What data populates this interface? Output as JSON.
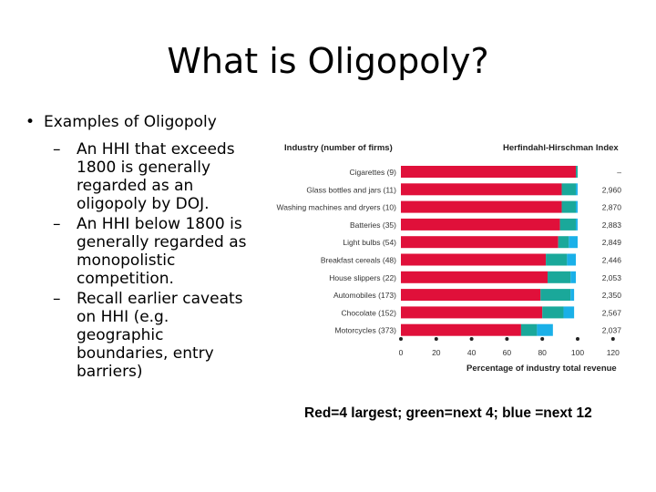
{
  "slide": {
    "title": "What is Oligopoly?",
    "bullet_main": "Examples of Oligopoly",
    "sub_bullets": [
      "An HHI that exceeds 1800 is generally regarded as an oligopoly by DOJ.",
      "An HHI below 1800 is generally regarded as monopolistic competition.",
      "Recall earlier caveats on HHI (e.g. geographic boundaries, entry barriers)"
    ],
    "caption": "Red=4 largest; green=next 4; blue =next 12"
  },
  "chart_data": {
    "type": "bar",
    "orientation": "horizontal",
    "stacked": true,
    "left_header": "Industry (number of firms)",
    "right_header": "Herfindahl-Hirschman Index",
    "xlabel": "Percentage of industry total revenue",
    "xlim": [
      0,
      120
    ],
    "xticks": [
      "0",
      "20",
      "40",
      "60",
      "80",
      "100",
      "120"
    ],
    "colors": {
      "red": "#e0103a",
      "green": "#1aa89a",
      "blue": "#1ab0e8"
    },
    "categories": [
      "Cigarettes (9)",
      "Glass bottles and jars (11)",
      "Washing machines and dryers (10)",
      "Batteries (35)",
      "Light bulbs (54)",
      "Breakfast cereals (48)",
      "House slippers (22)",
      "Automobiles (173)",
      "Chocolate (152)",
      "Motorcycles (373)"
    ],
    "hhi": [
      "–",
      "2,960",
      "2,870",
      "2,883",
      "2,849",
      "2,446",
      "2,053",
      "2,350",
      "2,567",
      "2,037"
    ],
    "series": [
      {
        "values": [
          99,
          91,
          91,
          90,
          89,
          82,
          83,
          79,
          80,
          68
        ]
      },
      {
        "values": [
          1,
          8,
          8,
          9,
          6,
          12,
          13,
          17,
          12,
          9
        ]
      },
      {
        "values": [
          0,
          1,
          1,
          1,
          5,
          5,
          3,
          2,
          6,
          9
        ]
      }
    ]
  }
}
